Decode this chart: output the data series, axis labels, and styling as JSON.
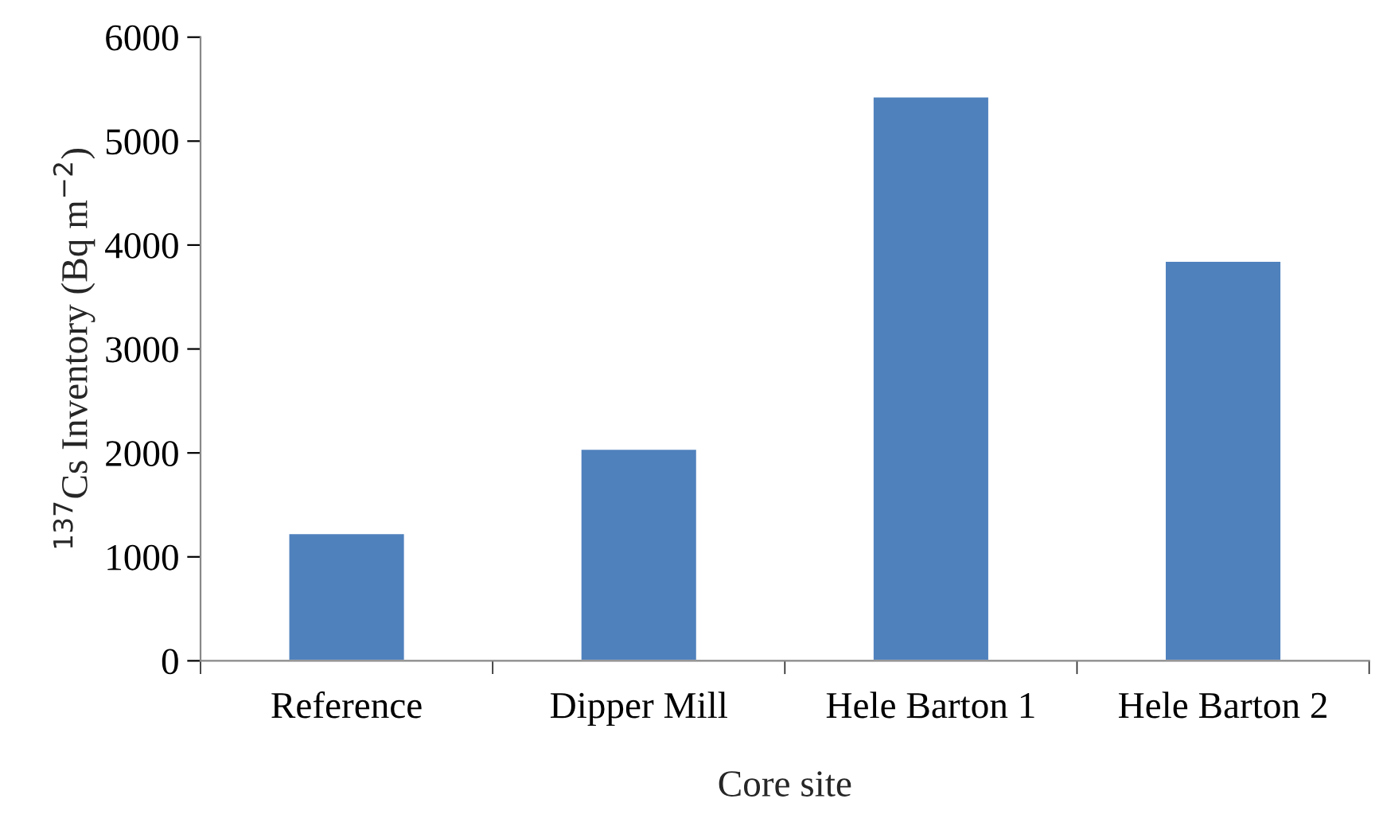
{
  "chart_data": {
    "type": "bar",
    "xlabel": "Core site",
    "ylabel": "$^{137}$Cs Inventory (Bq m$^{−2}$)",
    "categories": [
      "Reference",
      "Dipper Mill",
      "Hele Barton 1",
      "Hele Barton 2"
    ],
    "values": [
      1230,
      2040,
      5430,
      3850
    ],
    "color": "#4f81bd",
    "ylim": [
      0,
      6000
    ],
    "yticks": [
      0,
      1000,
      2000,
      3000,
      4000,
      5000,
      6000
    ],
    "grid": false,
    "legend": false
  }
}
